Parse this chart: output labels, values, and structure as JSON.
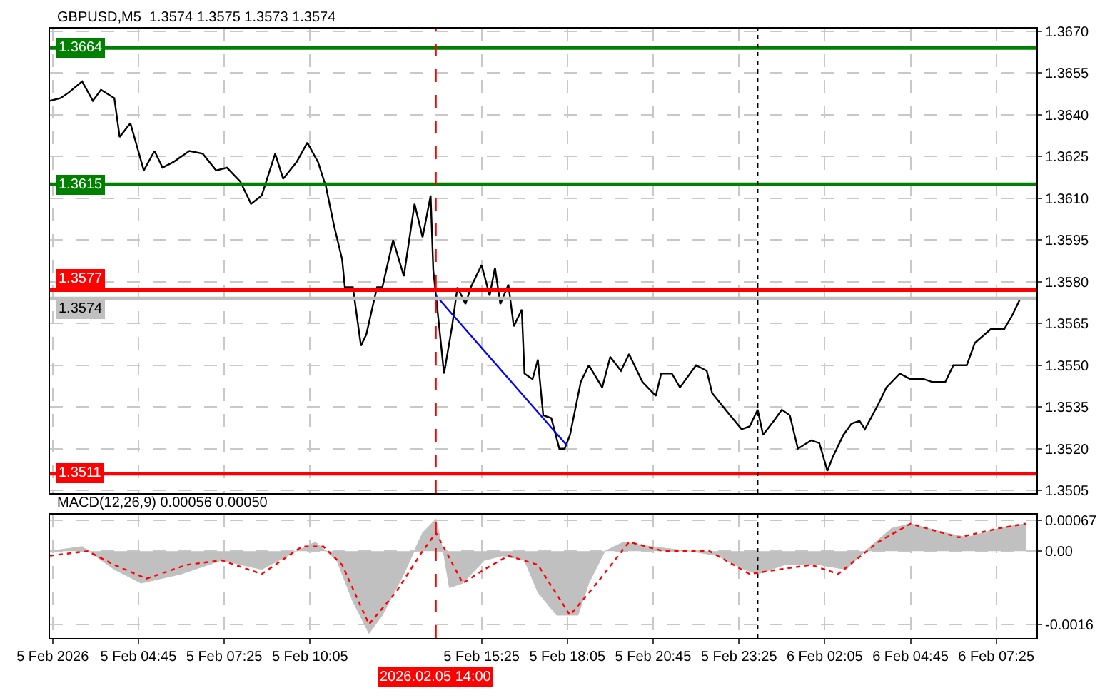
{
  "chart_data": [
    {
      "type": "line",
      "title": "GBPUSD,M5  1.3574 1.3575 1.3573 1.3574",
      "tick_labels": "y",
      "grid": true,
      "xlim": [
        "2026-02-05T02:00",
        "2026-02-06T08:40"
      ],
      "xticks": [
        {
          "value": "2026-02-05T02:05",
          "label": null
        },
        {
          "value": "2026-02-05T04:45",
          "label": null
        },
        {
          "value": "2026-02-05T07:25",
          "label": null
        },
        {
          "value": "2026-02-05T10:05",
          "label": null
        },
        {
          "value": "2026-02-05T15:25",
          "label": null
        },
        {
          "value": "2026-02-05T18:05",
          "label": null
        },
        {
          "value": "2026-02-05T20:45",
          "label": null
        },
        {
          "value": "2026-02-05T23:25",
          "label": null
        },
        {
          "value": "2026-02-06T02:05",
          "label": null
        },
        {
          "value": "2026-02-06T04:45",
          "label": null
        },
        {
          "value": "2026-02-06T07:25",
          "label": null
        }
      ],
      "ylim": [
        1.3504,
        1.3671
      ],
      "yticks": [
        1.3505,
        {
          "value": 1.352,
          "label": "1.3520"
        },
        1.3535,
        {
          "value": 1.355,
          "label": "1.3550"
        },
        1.3565,
        {
          "value": 1.358,
          "label": "1.3580"
        },
        1.3595,
        {
          "value": 1.361,
          "label": "1.3610"
        },
        1.3625,
        {
          "value": 1.364,
          "label": "1.3640"
        },
        1.3655,
        {
          "value": 1.367,
          "label": "1.3670"
        }
      ],
      "x": [
        "2026-02-05T02:00",
        "2026-02-05T02:20",
        "2026-02-05T02:35",
        "2026-02-05T03:00",
        "2026-02-05T03:20",
        "2026-02-05T03:35",
        "2026-02-05T04:00",
        "2026-02-05T04:10",
        "2026-02-05T04:30",
        "2026-02-05T04:55",
        "2026-02-05T05:15",
        "2026-02-05T05:30",
        "2026-02-05T05:50",
        "2026-02-05T06:20",
        "2026-02-05T06:45",
        "2026-02-05T07:10",
        "2026-02-05T07:30",
        "2026-02-05T07:55",
        "2026-02-05T08:15",
        "2026-02-05T08:35",
        "2026-02-05T09:00",
        "2026-02-05T09:15",
        "2026-02-05T09:40",
        "2026-02-05T10:00",
        "2026-02-05T10:20",
        "2026-02-05T10:35",
        "2026-02-05T10:50",
        "2026-02-05T11:05",
        "2026-02-05T11:10",
        "2026-02-05T11:25",
        "2026-02-05T11:40",
        "2026-02-05T11:50",
        "2026-02-05T12:10",
        "2026-02-05T12:20",
        "2026-02-05T12:40",
        "2026-02-05T13:00",
        "2026-02-05T13:20",
        "2026-02-05T13:35",
        "2026-02-05T13:50",
        "2026-02-05T13:55",
        "2026-02-05T14:00",
        "2026-02-05T14:15",
        "2026-02-05T14:30",
        "2026-02-05T14:40",
        "2026-02-05T14:55",
        "2026-02-05T15:05",
        "2026-02-05T15:25",
        "2026-02-05T15:40",
        "2026-02-05T15:50",
        "2026-02-05T16:00",
        "2026-02-05T16:15",
        "2026-02-05T16:25",
        "2026-02-05T16:40",
        "2026-02-05T16:45",
        "2026-02-05T17:00",
        "2026-02-05T17:10",
        "2026-02-05T17:20",
        "2026-02-05T17:35",
        "2026-02-05T17:50",
        "2026-02-05T18:00",
        "2026-02-05T18:10",
        "2026-02-05T18:30",
        "2026-02-05T18:45",
        "2026-02-05T19:10",
        "2026-02-05T19:25",
        "2026-02-05T19:45",
        "2026-02-05T20:00",
        "2026-02-05T20:25",
        "2026-02-05T20:50",
        "2026-02-05T21:00",
        "2026-02-05T21:20",
        "2026-02-05T21:35",
        "2026-02-05T22:05",
        "2026-02-05T22:25",
        "2026-02-05T22:35",
        "2026-02-05T23:00",
        "2026-02-05T23:30",
        "2026-02-05T23:45",
        "2026-02-06T00:00",
        "2026-02-06T00:10",
        "2026-02-06T00:30",
        "2026-02-06T00:45",
        "2026-02-06T01:00",
        "2026-02-06T01:15",
        "2026-02-06T01:40",
        "2026-02-06T01:55",
        "2026-02-06T02:10",
        "2026-02-06T02:20",
        "2026-02-06T02:40",
        "2026-02-06T02:55",
        "2026-02-06T03:10",
        "2026-02-06T03:20",
        "2026-02-06T03:45",
        "2026-02-06T04:00",
        "2026-02-06T04:25",
        "2026-02-06T04:45",
        "2026-02-06T05:10",
        "2026-02-06T05:25",
        "2026-02-06T05:50",
        "2026-02-06T06:05",
        "2026-02-06T06:30",
        "2026-02-06T06:45",
        "2026-02-06T07:15",
        "2026-02-06T07:40",
        "2026-02-06T07:55",
        "2026-02-06T08:10"
      ],
      "series": [
        {
          "color": "#000000",
          "values": [
            1.3645,
            1.3646,
            1.3648,
            1.3652,
            1.3645,
            1.3649,
            1.3646,
            1.3632,
            1.3637,
            1.362,
            1.3627,
            1.3621,
            1.3623,
            1.3627,
            1.3626,
            1.362,
            1.3621,
            1.3616,
            1.3608,
            1.3611,
            1.3626,
            1.3617,
            1.3623,
            1.363,
            1.3623,
            1.3614,
            1.36,
            1.3588,
            1.3578,
            1.3578,
            1.3557,
            1.3561,
            1.3578,
            1.3578,
            1.3595,
            1.3582,
            1.3608,
            1.3596,
            1.3611,
            1.3584,
            1.3575,
            1.3547,
            1.3564,
            1.3578,
            1.3572,
            1.3578,
            1.3586,
            1.3575,
            1.3585,
            1.3572,
            1.3579,
            1.3564,
            1.357,
            1.3547,
            1.3545,
            1.3552,
            1.3532,
            1.3531,
            1.352,
            1.352,
            1.3525,
            1.3544,
            1.355,
            1.3542,
            1.3553,
            1.3548,
            1.3554,
            1.3544,
            1.3539,
            1.3547,
            1.3547,
            1.3542,
            1.355,
            1.3548,
            1.354,
            1.3534,
            1.3527,
            1.3528,
            1.3534,
            1.3525,
            1.353,
            1.3534,
            1.3532,
            1.352,
            1.3523,
            1.3522,
            1.3512,
            1.3517,
            1.3525,
            1.3529,
            1.353,
            1.3527,
            1.3536,
            1.3542,
            1.3547,
            1.3545,
            1.3545,
            1.3544,
            1.3544,
            1.355,
            1.355,
            1.3558,
            1.3563,
            1.3563,
            1.3568,
            1.3574
          ]
        },
        {
          "type": "line",
          "color": "#0000ff",
          "x": [
            "2026-02-05T14:00",
            "2026-02-05T18:05"
          ],
          "values": [
            1.3575,
            1.3521
          ]
        }
      ],
      "ref_lines": [
        {
          "axis": "y",
          "value": 1.3664,
          "label": "1.3664",
          "color": "#008000"
        },
        {
          "axis": "y",
          "value": 1.3615,
          "label": "1.3615",
          "color": "#008000"
        },
        {
          "axis": "y",
          "value": 1.3577,
          "label": "1.3577",
          "color": "#ff0000"
        },
        {
          "axis": "y",
          "value": 1.3574,
          "label": "1.3574",
          "color": "#c0c0c0"
        },
        {
          "axis": "y",
          "value": 1.3511,
          "label": "1.3511",
          "color": "#ff0000"
        },
        {
          "axis": "x",
          "value": "2026-02-05T14:00",
          "color": "#ff0000",
          "line_style": "dashed"
        },
        {
          "axis": "x",
          "value": "2026-02-06T00:00",
          "color": "#000000",
          "line_style": "dotted"
        }
      ]
    },
    {
      "type": "area",
      "title": "MACD(12,26,9) 0.00056 0.00050",
      "grid": true,
      "xlim": [
        "2026-02-05T02:00",
        "2026-02-06T08:40"
      ],
      "xticks": [
        {
          "value": "2026-02-05T02:05",
          "label": "5 Feb 2026"
        },
        {
          "value": "2026-02-05T04:45",
          "label": "5 Feb 04:45"
        },
        {
          "value": "2026-02-05T07:25",
          "label": "5 Feb 07:25"
        },
        {
          "value": "2026-02-05T10:05",
          "label": "5 Feb 10:05"
        },
        {
          "value": "2026-02-05T15:25",
          "label": "5 Feb 15:25"
        },
        {
          "value": "2026-02-05T18:05",
          "label": "5 Feb 18:05"
        },
        {
          "value": "2026-02-05T20:45",
          "label": "5 Feb 20:45"
        },
        {
          "value": "2026-02-05T23:25",
          "label": "5 Feb 23:25"
        },
        {
          "value": "2026-02-06T02:05",
          "label": "6 Feb 02:05"
        },
        {
          "value": "2026-02-06T04:45",
          "label": "6 Feb 04:45"
        },
        {
          "value": "2026-02-06T07:25",
          "label": "6 Feb 07:25"
        }
      ],
      "ylim": [
        -0.0019,
        0.0008
      ],
      "yticks": [
        {
          "value": -0.0016,
          "label": "-0.0016"
        },
        {
          "value": 0,
          "label": "0.00"
        },
        {
          "value": 0.00067,
          "label": "0.00067"
        }
      ],
      "series": [
        {
          "color": "#c0c0c0",
          "x": [
            "2026-02-05T02:00",
            "2026-02-05T03:00",
            "2026-02-05T04:00",
            "2026-02-05T04:50",
            "2026-02-05T06:05",
            "2026-02-05T07:20",
            "2026-02-05T08:35",
            "2026-02-05T09:40",
            "2026-02-05T10:15",
            "2026-02-05T10:55",
            "2026-02-05T11:25",
            "2026-02-05T11:55",
            "2026-02-05T12:20",
            "2026-02-05T13:00",
            "2026-02-05T13:35",
            "2026-02-05T14:00",
            "2026-02-05T14:15",
            "2026-02-05T14:25",
            "2026-02-05T14:50",
            "2026-02-05T15:30",
            "2026-02-05T16:05",
            "2026-02-05T16:45",
            "2026-02-05T17:10",
            "2026-02-05T17:45",
            "2026-02-05T18:25",
            "2026-02-05T18:45",
            "2026-02-05T19:15",
            "2026-02-05T19:50",
            "2026-02-05T20:40",
            "2026-02-05T21:55",
            "2026-02-05T22:45",
            "2026-02-05T23:35",
            "2026-02-06T00:00",
            "2026-02-06T00:50",
            "2026-02-06T01:55",
            "2026-02-06T02:45",
            "2026-02-06T03:20",
            "2026-02-06T04:10",
            "2026-02-06T04:45",
            "2026-02-06T05:50",
            "2026-02-06T06:30",
            "2026-02-06T07:30",
            "2026-02-06T08:20"
          ],
          "values": [
            0,
            0.0001,
            -0.0004,
            -0.0007,
            -0.0005,
            -0.0002,
            -0.0004,
            0,
            0.0002,
            -0.0002,
            -0.0011,
            -0.0018,
            -0.0014,
            -0.0005,
            0.0004,
            0.0007,
            -0.0001,
            -0.0008,
            -0.0007,
            -0.0002,
            -0.0001,
            -0.0002,
            -0.0009,
            -0.0014,
            -0.0014,
            -0.0007,
            0,
            0.0002,
            0.0001,
            0,
            -0.0001,
            -0.0004,
            -0.0005,
            -0.0003,
            -0.0003,
            -0.0004,
            0,
            0.0005,
            0.0006,
            0.0004,
            0.0003,
            0.0005,
            0.0006
          ]
        },
        {
          "type": "line",
          "color": "#ff0000",
          "line_style": "dotted",
          "x": [
            "2026-02-05T02:00",
            "2026-02-05T03:10",
            "2026-02-05T04:00",
            "2026-02-05T05:00",
            "2026-02-05T06:15",
            "2026-02-05T07:20",
            "2026-02-05T08:35",
            "2026-02-05T09:50",
            "2026-02-05T10:30",
            "2026-02-05T11:05",
            "2026-02-05T11:55",
            "2026-02-05T12:45",
            "2026-02-05T13:35",
            "2026-02-05T14:00",
            "2026-02-05T14:50",
            "2026-02-05T15:30",
            "2026-02-05T16:15",
            "2026-02-05T17:10",
            "2026-02-05T18:10",
            "2026-02-05T19:00",
            "2026-02-05T20:00",
            "2026-02-05T21:05",
            "2026-02-05T22:30",
            "2026-02-05T23:45",
            "2026-02-06T00:40",
            "2026-02-06T01:40",
            "2026-02-06T02:30",
            "2026-02-06T03:45",
            "2026-02-06T04:45",
            "2026-02-06T06:15",
            "2026-02-06T07:30",
            "2026-02-06T08:20"
          ],
          "values": [
            -0.0001,
            0,
            -0.0003,
            -0.0006,
            -0.0003,
            -0.0002,
            -0.0005,
            0.0001,
            0.0001,
            -0.0003,
            -0.0016,
            -0.0009,
            0,
            0.0004,
            -0.0007,
            -0.0004,
            -0.0001,
            -0.0003,
            -0.0014,
            -0.0007,
            0.0002,
            0,
            0,
            -0.0005,
            -0.0004,
            -0.0003,
            -0.0005,
            0.0002,
            0.0006,
            0.0003,
            0.0005,
            0.0006
          ]
        }
      ],
      "ref_lines": [
        {
          "axis": "x",
          "value": "2026-02-05T14:00",
          "label": "2026.02.05 14:00",
          "color": "#ff0000",
          "line_style": "dashed"
        },
        {
          "axis": "x",
          "value": "2026-02-06T00:00",
          "color": "#000000",
          "line_style": "dotted"
        }
      ]
    }
  ]
}
